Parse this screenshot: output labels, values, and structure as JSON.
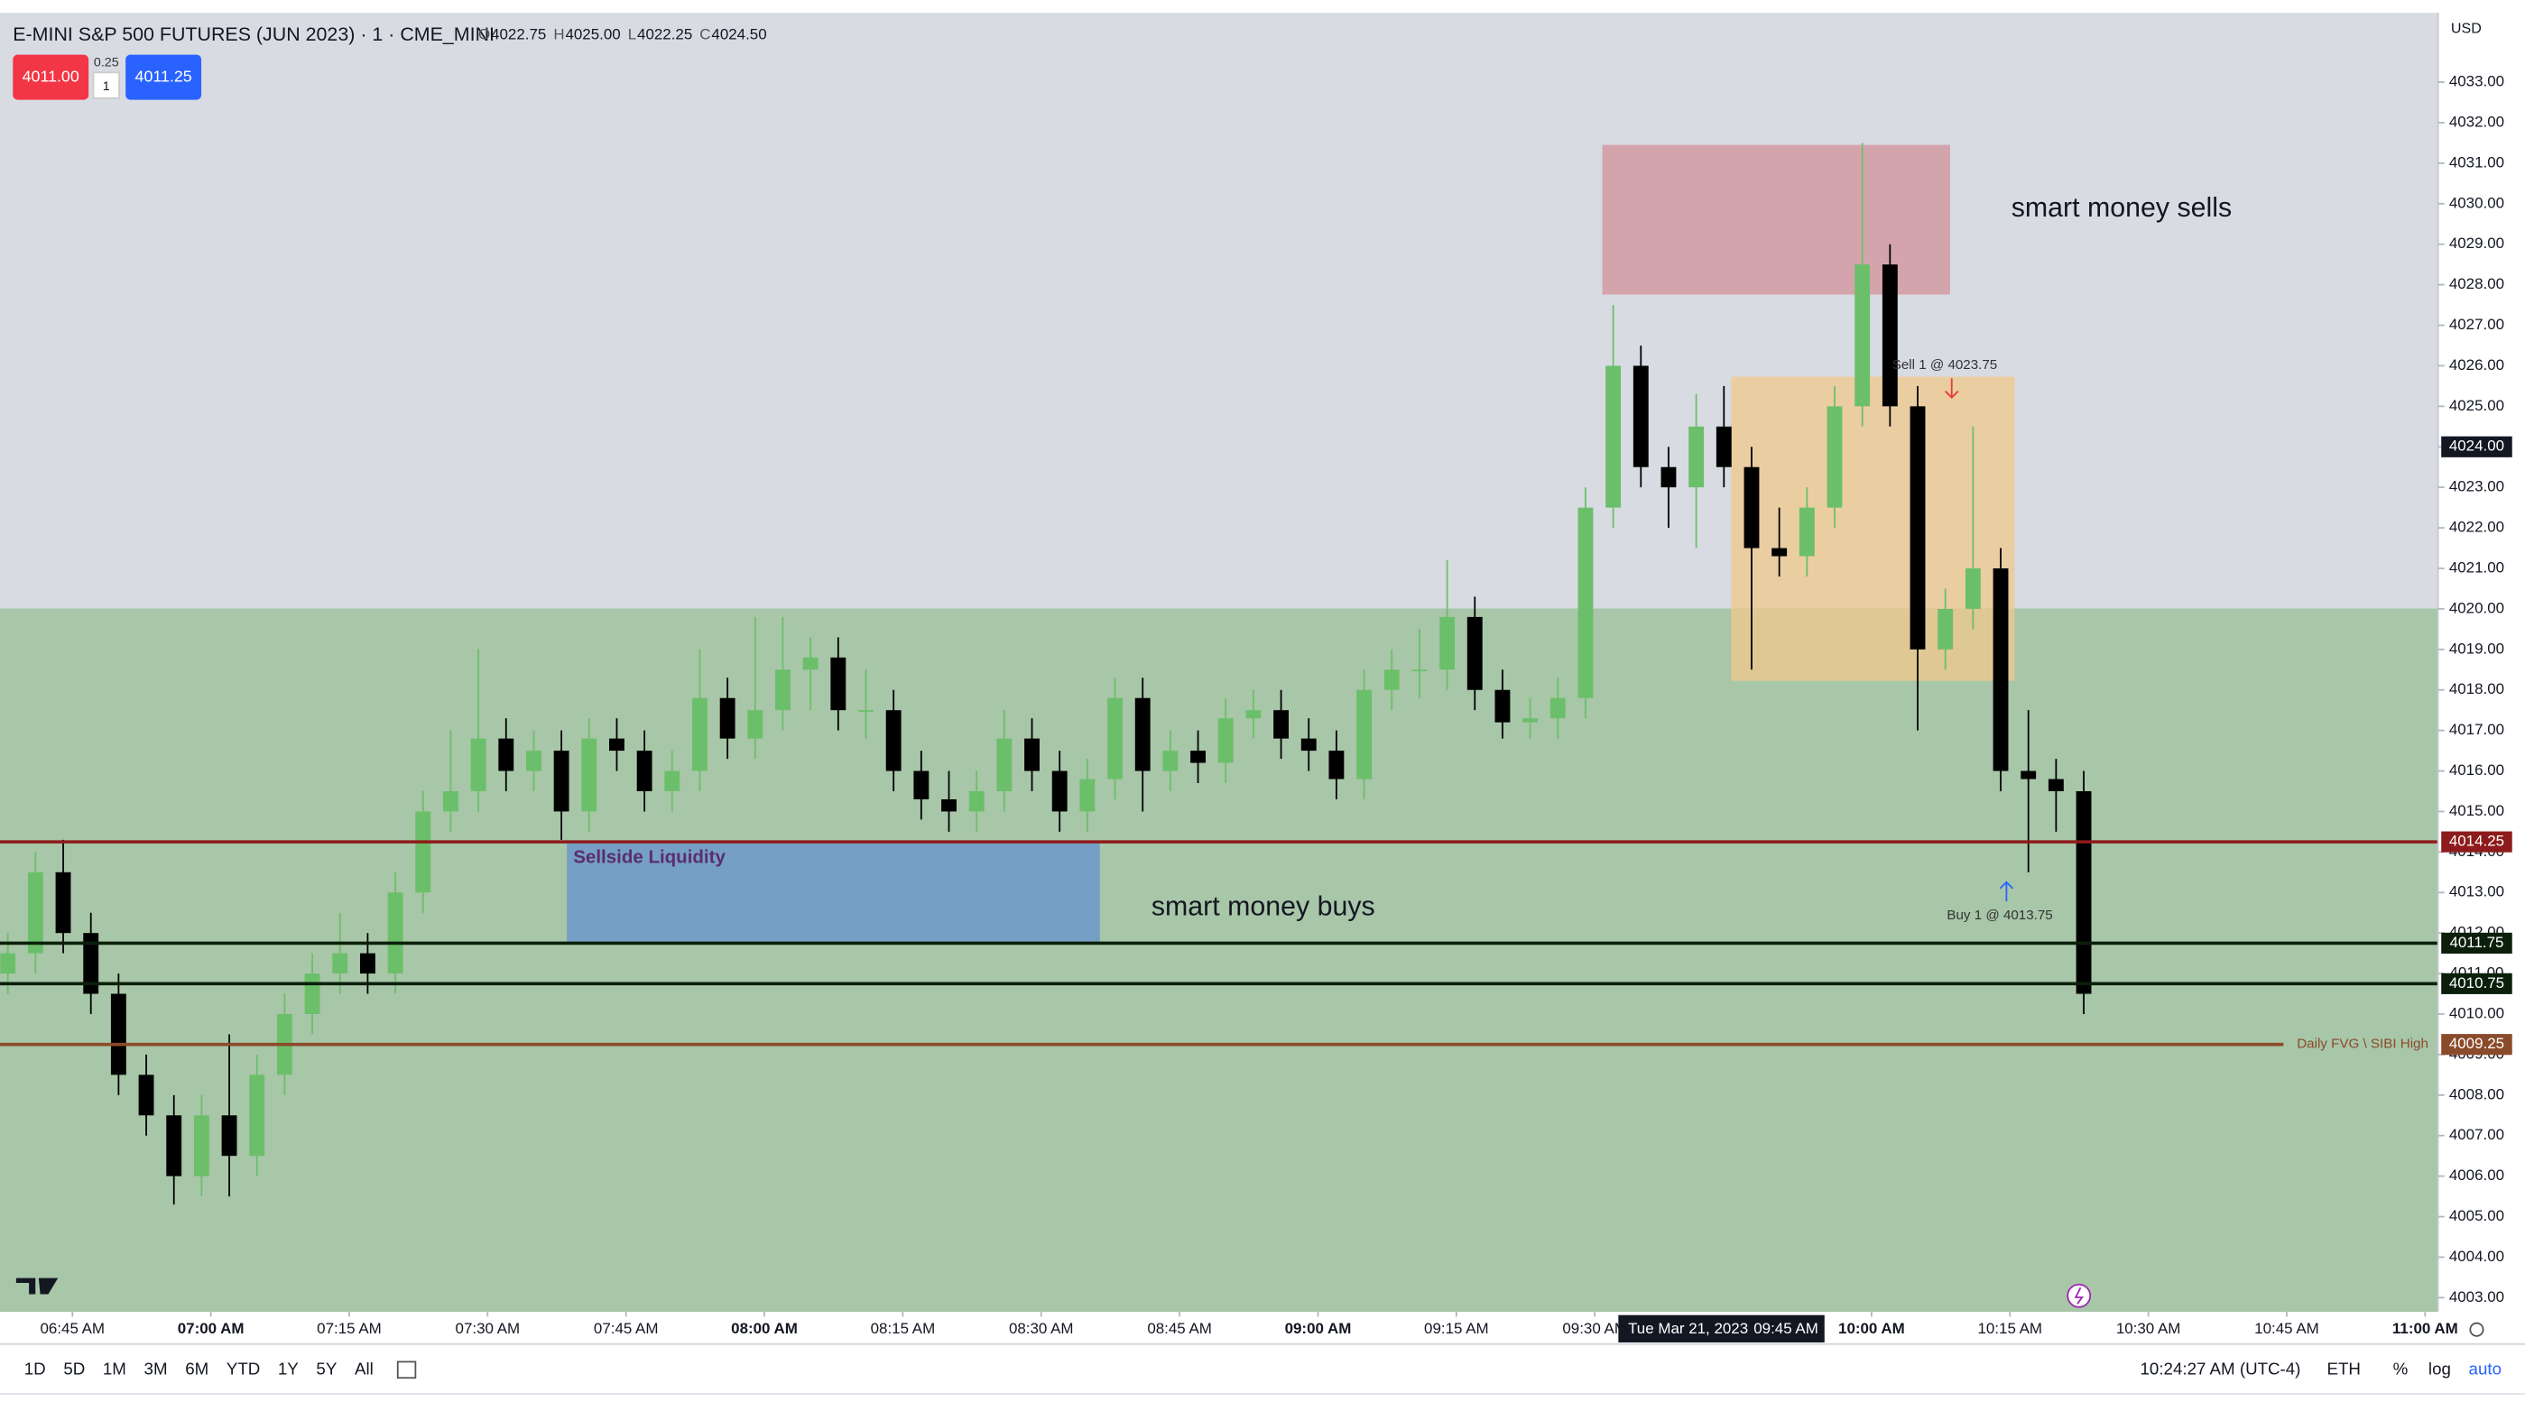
{
  "header": {
    "symbol": "E-MINI S&P 500 FUTURES (JUN 2023) · 1 · CME_MINI",
    "ohlc": [
      {
        "key": "O",
        "value": "4022.75"
      },
      {
        "key": "H",
        "value": "4025.00"
      },
      {
        "key": "L",
        "value": "4022.25"
      },
      {
        "key": "C",
        "value": "4024.50"
      }
    ],
    "sell_button": "4011.00",
    "spread": "0.25",
    "quantity": "1",
    "buy_button": "4011.25",
    "currency": "USD"
  },
  "chart_data": {
    "type": "candlestick",
    "x": [
      398,
      401,
      404,
      407,
      410,
      413,
      416,
      419,
      422,
      425,
      428,
      431,
      434,
      437,
      440,
      443,
      446,
      449,
      452,
      455,
      458,
      461,
      464,
      467,
      470,
      473,
      476,
      479,
      482,
      485,
      488,
      491,
      494,
      497,
      500,
      503,
      506,
      509,
      512,
      515,
      518,
      521,
      524,
      527,
      530,
      533,
      536,
      539,
      542,
      545,
      548,
      551,
      554,
      557,
      560,
      563,
      566,
      569,
      572,
      575,
      578,
      581,
      584,
      587,
      590,
      593,
      596,
      599,
      602,
      605,
      608,
      611,
      614,
      617,
      620,
      623
    ],
    "open": [
      4011,
      4011.5,
      4013.5,
      4012,
      4010.5,
      4008.5,
      4007.5,
      4006,
      4007.5,
      4006.5,
      4008.5,
      4010,
      4011,
      4011.5,
      4011,
      4013,
      4015,
      4015.5,
      4016.8,
      4016,
      4016.5,
      4015,
      4016.8,
      4016.5,
      4015.5,
      4016,
      4017.8,
      4016.8,
      4017.5,
      4018.5,
      4018.8,
      4017.5,
      4017.5,
      4016,
      4015.3,
      4015,
      4015.5,
      4016.8,
      4016,
      4015,
      4015.8,
      4017.8,
      4016,
      4016.5,
      4016.2,
      4017.3,
      4017.5,
      4016.8,
      4016.5,
      4015.8,
      4018,
      4018.5,
      4018.5,
      4019.8,
      4018,
      4017.2,
      4017.3,
      4017.8,
      4022.5,
      4026,
      4023.5,
      4023,
      4024.5,
      4023.5,
      4021.5,
      4021.3,
      4022.5,
      4025,
      4028.5,
      4025,
      4019,
      4020,
      4021,
      4016,
      4015.8,
      4015.5
    ],
    "high": [
      4012,
      4014,
      4014.3,
      4012.5,
      4011,
      4009,
      4008,
      4008,
      4009.5,
      4009,
      4010.5,
      4011.5,
      4012.5,
      4012,
      4013.5,
      4015.5,
      4017,
      4019,
      4017.3,
      4017,
      4017,
      4017.3,
      4017.3,
      4017,
      4016.5,
      4019,
      4018.3,
      4019.8,
      4019.8,
      4019.3,
      4019.3,
      4018.5,
      4018,
      4016.5,
      4016,
      4016,
      4017.5,
      4017.3,
      4016.5,
      4016.3,
      4018.3,
      4018.3,
      4017,
      4017,
      4017.8,
      4018,
      4018,
      4017.3,
      4017,
      4018.5,
      4019,
      4019.5,
      4021.2,
      4020.3,
      4018.5,
      4017.8,
      4018.3,
      4023,
      4027.5,
      4026.5,
      4024,
      4025.3,
      4025.5,
      4024,
      4022.5,
      4023,
      4025.5,
      4031.5,
      4029,
      4025.5,
      4020.5,
      4024.5,
      4021.5,
      4017.5,
      4016.3,
      4016
    ],
    "low": [
      4010.5,
      4011,
      4011.5,
      4010,
      4008,
      4007,
      4005.3,
      4005.5,
      4005.5,
      4006,
      4008,
      4009.5,
      4010.5,
      4010.5,
      4010.5,
      4012.5,
      4014.5,
      4015,
      4015.5,
      4015.5,
      4014.3,
      4014.5,
      4016,
      4015,
      4015,
      4015.5,
      4016.3,
      4016.3,
      4017,
      4017.5,
      4017,
      4016.8,
      4015.5,
      4014.8,
      4014.5,
      4014.5,
      4015,
      4015.5,
      4014.5,
      4014.5,
      4015.3,
      4015,
      4015.5,
      4015.7,
      4015.7,
      4016.8,
      4016.3,
      4016,
      4015.3,
      4015.3,
      4017.5,
      4017.8,
      4018,
      4017.5,
      4016.8,
      4016.8,
      4016.8,
      4017.3,
      4022,
      4023,
      4022,
      4021.5,
      4023,
      4018.5,
      4020.8,
      4020.8,
      4022,
      4024.5,
      4024.5,
      4017,
      4018.5,
      4019.5,
      4015.5,
      4013.5,
      4014.5,
      4010
    ],
    "close": [
      4011.5,
      4013.5,
      4012,
      4010.5,
      4008.5,
      4007.5,
      4006,
      4007.5,
      4006.5,
      4008.5,
      4010,
      4011,
      4011.5,
      4011,
      4013,
      4015,
      4015.5,
      4016.8,
      4016,
      4016.5,
      4015,
      4016.8,
      4016.5,
      4015.5,
      4016,
      4017.8,
      4016.8,
      4017.5,
      4018.5,
      4018.8,
      4017.5,
      4017.5,
      4016,
      4015.3,
      4015,
      4015.5,
      4016.8,
      4016,
      4015,
      4015.8,
      4017.8,
      4016,
      4016.5,
      4016.2,
      4017.3,
      4017.5,
      4016.8,
      4016.5,
      4015.8,
      4018,
      4018.5,
      4018.5,
      4019.8,
      4018,
      4017.2,
      4017.3,
      4017.8,
      4022.5,
      4026,
      4023.5,
      4023,
      4024.5,
      4023.5,
      4021.5,
      4021.3,
      4022.5,
      4025,
      4028.5,
      4025,
      4019,
      4020,
      4021,
      4016,
      4015.8,
      4015.5,
      4010.5
    ],
    "up_color": "#6cbf6a",
    "down_color": "#000000",
    "xlim": [
      397.15,
      661.4
    ],
    "ylim": [
      4002.65,
      4034.71
    ],
    "xticks": [
      {
        "value": 405,
        "label": "06:45 AM"
      },
      {
        "value": 420,
        "label": "07:00 AM"
      },
      {
        "value": 435,
        "label": "07:15 AM"
      },
      {
        "value": 450,
        "label": "07:30 AM"
      },
      {
        "value": 465,
        "label": "07:45 AM"
      },
      {
        "value": 480,
        "label": "08:00 AM"
      },
      {
        "value": 495,
        "label": "08:15 AM"
      },
      {
        "value": 510,
        "label": "08:30 AM"
      },
      {
        "value": 525,
        "label": "08:45 AM"
      },
      {
        "value": 540,
        "label": "09:00 AM"
      },
      {
        "value": 555,
        "label": "09:15 AM"
      },
      {
        "value": 570,
        "label": "09:30 AM"
      },
      {
        "value": 600,
        "label": "10:00 AM"
      },
      {
        "value": 615,
        "label": "10:15 AM"
      },
      {
        "value": 630,
        "label": "10:30 AM"
      },
      {
        "value": 645,
        "label": "10:45 AM"
      },
      {
        "value": 660,
        "label": "11:00 AM"
      }
    ],
    "yticks": [
      {
        "value": 4003,
        "label": "4003.00"
      },
      {
        "value": 4004,
        "label": "4004.00"
      },
      {
        "value": 4005,
        "label": "4005.00"
      },
      {
        "value": 4006,
        "label": "4006.00"
      },
      {
        "value": 4007,
        "label": "4007.00"
      },
      {
        "value": 4008,
        "label": "4008.00"
      },
      {
        "value": 4009,
        "label": "4009.00"
      },
      {
        "value": 4010,
        "label": "4010.00"
      },
      {
        "value": 4011,
        "label": "4011.00"
      },
      {
        "value": 4012,
        "label": "4012.00"
      },
      {
        "value": 4013,
        "label": "4013.00"
      },
      {
        "value": 4014,
        "label": "4014.00"
      },
      {
        "value": 4015,
        "label": "4015.00"
      },
      {
        "value": 4016,
        "label": "4016.00"
      },
      {
        "value": 4017,
        "label": "4017.00"
      },
      {
        "value": 4018,
        "label": "4018.00"
      },
      {
        "value": 4019,
        "label": "4019.00"
      },
      {
        "value": 4020,
        "label": "4020.00"
      },
      {
        "value": 4021,
        "label": "4021.00"
      },
      {
        "value": 4022,
        "label": "4022.00"
      },
      {
        "value": 4023,
        "label": "4023.00"
      },
      {
        "value": 4024,
        "label": "4024.00"
      },
      {
        "value": 4025,
        "label": "4025.00"
      },
      {
        "value": 4026,
        "label": "4026.00"
      },
      {
        "value": 4027,
        "label": "4027.00"
      },
      {
        "value": 4028,
        "label": "4028.00"
      },
      {
        "value": 4029,
        "label": "4029.00"
      },
      {
        "value": 4030,
        "label": "4030.00"
      },
      {
        "value": 4031,
        "label": "4031.00"
      },
      {
        "value": 4032,
        "label": "4032.00"
      },
      {
        "value": 4033,
        "label": "4033.00"
      }
    ],
    "levels": [
      {
        "value": 4014.25,
        "color": "#8e1b1b"
      },
      {
        "value": 4011.75,
        "label": "4011.75",
        "color": "#0b1f0b"
      },
      {
        "value": 4010.75,
        "label": "4010.75",
        "color": "#0b1f0b"
      },
      {
        "value": 4009.25,
        "color": "#8a4b2a",
        "name": "Daily FVG \\ SIBI High"
      }
    ],
    "last_price": {
      "value": 4024,
      "label": "4024.00"
    },
    "annotations": {
      "sells": "smart money sells",
      "buys": "smart money buys",
      "liquidity": "Sellside Liquidity",
      "sell_order": "Sell 1 @ 4023.75",
      "buy_order": "Buy 1 @ 4013.75"
    },
    "crosshair": {
      "date": "Tue Mar 21, 2023",
      "time": "09:45 AM"
    }
  },
  "toolbar": {
    "ranges": [
      "1D",
      "5D",
      "1M",
      "3M",
      "6M",
      "YTD",
      "1Y",
      "5Y",
      "All"
    ],
    "clock": "10:24:27 AM (UTC-4)",
    "session": "ETH",
    "percent": "%",
    "log": "log",
    "auto": "auto"
  }
}
